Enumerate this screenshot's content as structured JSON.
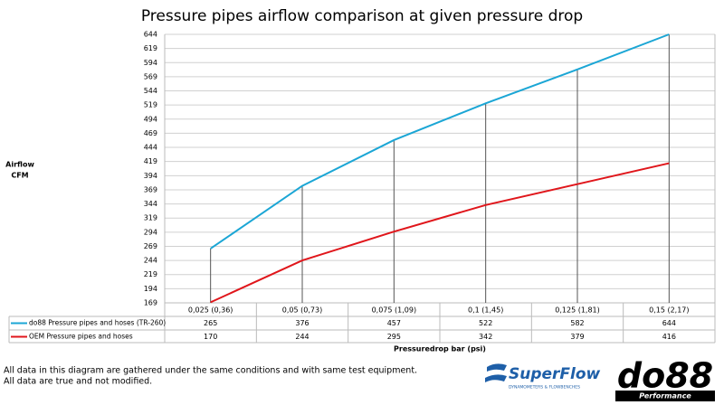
{
  "chart_data": {
    "type": "line",
    "title": "Pressure pipes airflow comparison at given pressure drop",
    "y_label": [
      "Airflow",
      "CFM"
    ],
    "x_label": "Pressuredrop bar (psi)",
    "categories": [
      "0,025 (0,36)",
      "0,05 (0,73)",
      "0,075 (1,09)",
      "0,1 (1,45)",
      "0,125 (1,81)",
      "0,15 (2,17)"
    ],
    "series": [
      {
        "name": "do88 Pressure pipes and hoses (TR-260)",
        "color": "#1ba6d5",
        "values": [
          265,
          376,
          457,
          522,
          582,
          644
        ]
      },
      {
        "name": "OEM Pressure pipes and hoses",
        "color": "#e0161b",
        "values": [
          170,
          244,
          295,
          342,
          379,
          416
        ]
      }
    ],
    "ylim": [
      169,
      644
    ],
    "yticks": [
      169,
      194,
      219,
      244,
      269,
      294,
      319,
      344,
      369,
      394,
      419,
      444,
      469,
      494,
      519,
      544,
      569,
      594,
      619,
      644
    ],
    "grid": true,
    "drop_lines": true
  },
  "notes": [
    "All data in this diagram are gathered under the same conditions and with same test equipment.",
    "All data are true and not modified."
  ],
  "logos": {
    "superflow": "SuperFlow",
    "superflow_sub": "DYNAMOMETERS & FLOWBENCHES",
    "do88": "do88",
    "do88_sub": "Performance"
  }
}
